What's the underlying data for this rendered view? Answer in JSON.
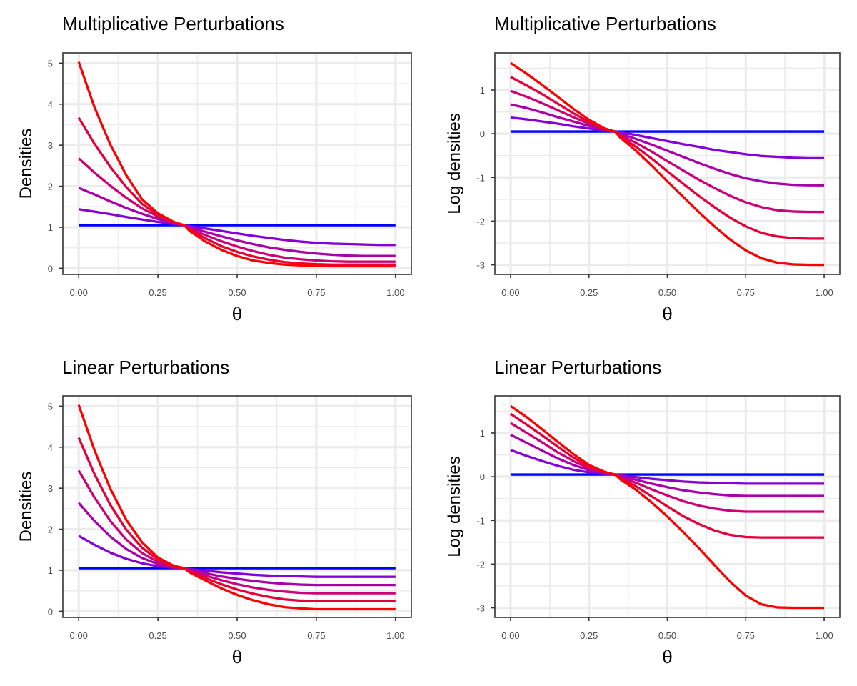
{
  "chart_data": [
    {
      "type": "line",
      "title": "Multiplicative Perturbations",
      "xlabel": "θ",
      "ylabel": "Densities",
      "xlim": [
        -0.05,
        1.05
      ],
      "ylim": [
        -0.15,
        5.25
      ],
      "xticks": [
        0,
        0.25,
        0.5,
        0.75,
        1
      ],
      "xtick_labels": [
        "0.00",
        "0.25",
        "0.50",
        "0.75",
        "1.00"
      ],
      "yticks": [
        0,
        1,
        2,
        3,
        4,
        5
      ],
      "ytick_labels": [
        "0",
        "1",
        "2",
        "3",
        "4",
        "5"
      ],
      "grid": true,
      "legend": "none",
      "x": [
        0,
        0.05,
        0.1,
        0.15,
        0.2,
        0.25,
        0.3,
        0.333,
        0.35,
        0.4,
        0.45,
        0.5,
        0.55,
        0.6,
        0.65,
        0.7,
        0.75,
        0.8,
        0.85,
        0.9,
        0.95,
        1
      ],
      "series": [
        {
          "color": "#0000ff",
          "values": [
            1.05,
            1.05,
            1.05,
            1.05,
            1.05,
            1.05,
            1.05,
            1.05,
            1.05,
            1.05,
            1.05,
            1.05,
            1.05,
            1.05,
            1.05,
            1.05,
            1.05,
            1.05,
            1.05,
            1.05,
            1.05,
            1.05
          ]
        },
        {
          "color": "#8800d8",
          "values": [
            1.44,
            1.38,
            1.32,
            1.25,
            1.19,
            1.13,
            1.08,
            1.05,
            1.03,
            0.97,
            0.91,
            0.85,
            0.79,
            0.74,
            0.69,
            0.65,
            0.62,
            0.6,
            0.59,
            0.58,
            0.57,
            0.57
          ]
        },
        {
          "color": "#aa00aa",
          "values": [
            1.96,
            1.8,
            1.63,
            1.47,
            1.33,
            1.2,
            1.1,
            1.05,
            1.0,
            0.89,
            0.78,
            0.68,
            0.59,
            0.51,
            0.45,
            0.4,
            0.36,
            0.33,
            0.31,
            0.3,
            0.3,
            0.3
          ]
        },
        {
          "color": "#cc0077",
          "values": [
            2.68,
            2.33,
            2.01,
            1.72,
            1.46,
            1.26,
            1.11,
            1.05,
            0.97,
            0.81,
            0.66,
            0.53,
            0.42,
            0.33,
            0.26,
            0.22,
            0.19,
            0.17,
            0.16,
            0.16,
            0.16,
            0.16
          ]
        },
        {
          "color": "#e6003a",
          "values": [
            3.67,
            3.03,
            2.47,
            1.98,
            1.57,
            1.3,
            1.12,
            1.05,
            0.94,
            0.73,
            0.54,
            0.4,
            0.29,
            0.21,
            0.15,
            0.12,
            0.1,
            0.09,
            0.09,
            0.09,
            0.09,
            0.09
          ]
        },
        {
          "color": "#ff0000",
          "values": [
            5.03,
            3.92,
            3.01,
            2.27,
            1.68,
            1.34,
            1.13,
            1.05,
            0.91,
            0.65,
            0.45,
            0.3,
            0.19,
            0.13,
            0.09,
            0.07,
            0.06,
            0.05,
            0.05,
            0.05,
            0.05,
            0.05
          ]
        }
      ]
    },
    {
      "type": "line",
      "title": "Multiplicative Perturbations",
      "xlabel": "θ",
      "ylabel": "Log densities",
      "xlim": [
        -0.05,
        1.05
      ],
      "ylim": [
        -3.22,
        1.85
      ],
      "xticks": [
        0,
        0.25,
        0.5,
        0.75,
        1
      ],
      "xtick_labels": [
        "0.00",
        "0.25",
        "0.50",
        "0.75",
        "1.00"
      ],
      "yticks": [
        -3,
        -2,
        -1,
        0,
        1
      ],
      "ytick_labels": [
        "-3",
        "-2",
        "-1",
        "0",
        "1"
      ],
      "grid": true,
      "legend": "none",
      "x": [
        0,
        0.05,
        0.1,
        0.15,
        0.2,
        0.25,
        0.3,
        0.333,
        0.35,
        0.4,
        0.45,
        0.5,
        0.55,
        0.6,
        0.65,
        0.7,
        0.75,
        0.8,
        0.85,
        0.9,
        0.95,
        1
      ],
      "series": [
        {
          "color": "#0000ff",
          "values": [
            0.05,
            0.05,
            0.05,
            0.05,
            0.05,
            0.05,
            0.05,
            0.05,
            0.05,
            0.05,
            0.05,
            0.05,
            0.05,
            0.05,
            0.05,
            0.05,
            0.05,
            0.05,
            0.05,
            0.05,
            0.05,
            0.05
          ]
        },
        {
          "color": "#8800d8",
          "values": [
            0.37,
            0.33,
            0.28,
            0.23,
            0.17,
            0.12,
            0.07,
            0.05,
            0.03,
            -0.03,
            -0.1,
            -0.17,
            -0.24,
            -0.3,
            -0.37,
            -0.42,
            -0.47,
            -0.51,
            -0.53,
            -0.55,
            -0.56,
            -0.56
          ]
        },
        {
          "color": "#aa00aa",
          "values": [
            0.67,
            0.59,
            0.49,
            0.38,
            0.28,
            0.18,
            0.09,
            0.05,
            0.0,
            -0.12,
            -0.25,
            -0.39,
            -0.53,
            -0.67,
            -0.8,
            -0.92,
            -1.02,
            -1.09,
            -1.14,
            -1.17,
            -1.18,
            -1.18
          ]
        },
        {
          "color": "#cc0077",
          "values": [
            0.98,
            0.85,
            0.7,
            0.54,
            0.38,
            0.23,
            0.1,
            0.05,
            -0.03,
            -0.21,
            -0.41,
            -0.63,
            -0.84,
            -1.05,
            -1.24,
            -1.42,
            -1.57,
            -1.68,
            -1.75,
            -1.78,
            -1.79,
            -1.79
          ]
        },
        {
          "color": "#e6003a",
          "values": [
            1.3,
            1.11,
            0.91,
            0.69,
            0.47,
            0.27,
            0.11,
            0.05,
            -0.06,
            -0.3,
            -0.57,
            -0.86,
            -1.14,
            -1.42,
            -1.68,
            -1.92,
            -2.12,
            -2.27,
            -2.35,
            -2.39,
            -2.4,
            -2.4
          ]
        },
        {
          "color": "#ff0000",
          "values": [
            1.62,
            1.38,
            1.12,
            0.85,
            0.57,
            0.32,
            0.12,
            0.05,
            -0.09,
            -0.39,
            -0.73,
            -1.09,
            -1.44,
            -1.79,
            -2.12,
            -2.42,
            -2.67,
            -2.85,
            -2.95,
            -2.99,
            -3.0,
            -3.0
          ]
        }
      ]
    },
    {
      "type": "line",
      "title": "Linear Perturbations",
      "xlabel": "θ",
      "ylabel": "Densities",
      "xlim": [
        -0.05,
        1.05
      ],
      "ylim": [
        -0.15,
        5.25
      ],
      "xticks": [
        0,
        0.25,
        0.5,
        0.75,
        1
      ],
      "xtick_labels": [
        "0.00",
        "0.25",
        "0.50",
        "0.75",
        "1.00"
      ],
      "yticks": [
        0,
        1,
        2,
        3,
        4,
        5
      ],
      "ytick_labels": [
        "0",
        "1",
        "2",
        "3",
        "4",
        "5"
      ],
      "grid": true,
      "legend": "none",
      "x": [
        0,
        0.05,
        0.1,
        0.15,
        0.2,
        0.25,
        0.3,
        0.333,
        0.35,
        0.4,
        0.45,
        0.5,
        0.55,
        0.6,
        0.65,
        0.7,
        0.75,
        0.8,
        0.85,
        0.9,
        0.95,
        1
      ],
      "series": [
        {
          "color": "#0000ff",
          "values": [
            1.05,
            1.05,
            1.05,
            1.05,
            1.05,
            1.05,
            1.05,
            1.05,
            1.05,
            1.05,
            1.05,
            1.05,
            1.05,
            1.05,
            1.05,
            1.05,
            1.05,
            1.05,
            1.05,
            1.05,
            1.05,
            1.05
          ]
        },
        {
          "color": "#8800d8",
          "values": [
            1.84,
            1.62,
            1.43,
            1.28,
            1.17,
            1.1,
            1.06,
            1.05,
            1.03,
            0.99,
            0.95,
            0.92,
            0.89,
            0.87,
            0.86,
            0.85,
            0.84,
            0.84,
            0.84,
            0.84,
            0.84,
            0.84
          ]
        },
        {
          "color": "#aa00aa",
          "values": [
            2.64,
            2.2,
            1.82,
            1.52,
            1.3,
            1.15,
            1.07,
            1.05,
            1.01,
            0.93,
            0.85,
            0.79,
            0.74,
            0.7,
            0.67,
            0.65,
            0.64,
            0.64,
            0.64,
            0.64,
            0.64,
            0.64
          ]
        },
        {
          "color": "#cc0077",
          "values": [
            3.43,
            2.77,
            2.2,
            1.75,
            1.42,
            1.2,
            1.08,
            1.05,
            0.99,
            0.87,
            0.76,
            0.66,
            0.58,
            0.52,
            0.48,
            0.45,
            0.44,
            0.44,
            0.44,
            0.44,
            0.44,
            0.44
          ]
        },
        {
          "color": "#e6003a",
          "values": [
            4.23,
            3.34,
            2.59,
            1.99,
            1.55,
            1.26,
            1.1,
            1.05,
            0.97,
            0.81,
            0.66,
            0.53,
            0.43,
            0.35,
            0.29,
            0.26,
            0.25,
            0.25,
            0.25,
            0.25,
            0.25,
            0.25
          ]
        },
        {
          "color": "#ff0000",
          "values": [
            5.03,
            3.92,
            2.98,
            2.23,
            1.68,
            1.31,
            1.11,
            1.05,
            0.95,
            0.75,
            0.56,
            0.4,
            0.27,
            0.17,
            0.1,
            0.07,
            0.05,
            0.05,
            0.05,
            0.05,
            0.05,
            0.05
          ]
        }
      ]
    },
    {
      "type": "line",
      "title": "Linear Perturbations",
      "xlabel": "θ",
      "ylabel": "Log densities",
      "xlim": [
        -0.05,
        1.05
      ],
      "ylim": [
        -3.22,
        1.85
      ],
      "xticks": [
        0,
        0.25,
        0.5,
        0.75,
        1
      ],
      "xtick_labels": [
        "0.00",
        "0.25",
        "0.50",
        "0.75",
        "1.00"
      ],
      "yticks": [
        -3,
        -2,
        -1,
        0,
        1
      ],
      "ytick_labels": [
        "-3",
        "-2",
        "-1",
        "0",
        "1"
      ],
      "grid": true,
      "legend": "none",
      "x": [
        0,
        0.05,
        0.1,
        0.15,
        0.2,
        0.25,
        0.3,
        0.333,
        0.35,
        0.4,
        0.45,
        0.5,
        0.55,
        0.6,
        0.65,
        0.7,
        0.75,
        0.8,
        0.85,
        0.9,
        0.95,
        1
      ],
      "series": [
        {
          "color": "#0000ff",
          "values": [
            0.05,
            0.05,
            0.05,
            0.05,
            0.05,
            0.05,
            0.05,
            0.05,
            0.05,
            0.05,
            0.05,
            0.05,
            0.05,
            0.05,
            0.05,
            0.05,
            0.05,
            0.05,
            0.05,
            0.05,
            0.05,
            0.05
          ]
        },
        {
          "color": "#8800d8",
          "values": [
            0.61,
            0.48,
            0.36,
            0.25,
            0.16,
            0.1,
            0.06,
            0.05,
            0.03,
            -0.01,
            -0.05,
            -0.08,
            -0.11,
            -0.13,
            -0.14,
            -0.15,
            -0.16,
            -0.16,
            -0.16,
            -0.16,
            -0.16,
            -0.16
          ]
        },
        {
          "color": "#aa00aa",
          "values": [
            0.96,
            0.78,
            0.6,
            0.42,
            0.27,
            0.15,
            0.08,
            0.05,
            0.01,
            -0.07,
            -0.16,
            -0.24,
            -0.31,
            -0.36,
            -0.4,
            -0.43,
            -0.44,
            -0.44,
            -0.44,
            -0.44,
            -0.44,
            -0.44
          ]
        },
        {
          "color": "#cc0077",
          "values": [
            1.23,
            1.01,
            0.79,
            0.56,
            0.36,
            0.19,
            0.09,
            0.05,
            -0.01,
            -0.14,
            -0.29,
            -0.43,
            -0.56,
            -0.66,
            -0.73,
            -0.78,
            -0.8,
            -0.8,
            -0.8,
            -0.8,
            -0.8,
            -0.8
          ]
        },
        {
          "color": "#e6003a",
          "values": [
            1.44,
            1.2,
            0.95,
            0.69,
            0.44,
            0.23,
            0.1,
            0.05,
            -0.03,
            -0.22,
            -0.45,
            -0.68,
            -0.9,
            -1.08,
            -1.23,
            -1.33,
            -1.38,
            -1.39,
            -1.39,
            -1.39,
            -1.39,
            -1.39
          ]
        },
        {
          "color": "#ff0000",
          "values": [
            1.62,
            1.37,
            1.09,
            0.8,
            0.52,
            0.27,
            0.11,
            0.05,
            -0.06,
            -0.3,
            -0.59,
            -0.91,
            -1.26,
            -1.63,
            -2.02,
            -2.4,
            -2.72,
            -2.92,
            -2.99,
            -3.0,
            -3.0,
            -3.0
          ]
        }
      ]
    }
  ]
}
